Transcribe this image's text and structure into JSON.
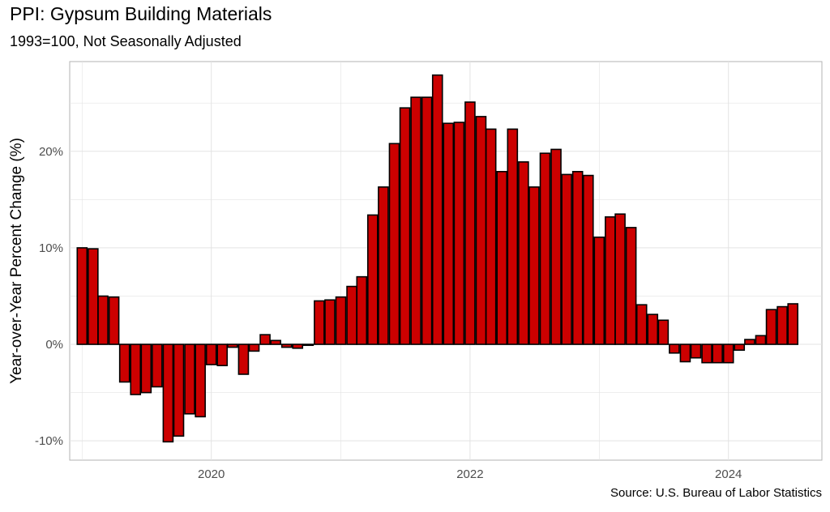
{
  "title": "PPI: Gypsum Building Materials",
  "subtitle": "1993=100, Not Seasonally Adjusted",
  "source": "Source: U.S. Bureau of Labor Statistics",
  "chart_data": {
    "type": "bar",
    "title": "PPI: Gypsum Building Materials",
    "subtitle": "1993=100, Not Seasonally Adjusted",
    "xlabel": "",
    "ylabel": "Year-over-Year Percent Change (%)",
    "x_ticks": [
      "2020",
      "2022",
      "2024"
    ],
    "y_ticks": [
      {
        "value": -10,
        "label": "-10%"
      },
      {
        "value": 0,
        "label": "0%"
      },
      {
        "value": 10,
        "label": "10%"
      },
      {
        "value": 20,
        "label": "20%"
      }
    ],
    "ylim": [
      -12,
      29.3
    ],
    "xlim": [
      "2018-11-27",
      "2024-09-21"
    ],
    "grid": true,
    "bar_fill": "#cc0000",
    "bar_outline": "#000000",
    "categories": [
      "2019-01",
      "2019-02",
      "2019-03",
      "2019-04",
      "2019-05",
      "2019-06",
      "2019-07",
      "2019-08",
      "2019-09",
      "2019-10",
      "2019-11",
      "2019-12",
      "2020-01",
      "2020-02",
      "2020-03",
      "2020-04",
      "2020-05",
      "2020-06",
      "2020-07",
      "2020-08",
      "2020-09",
      "2020-10",
      "2020-11",
      "2020-12",
      "2021-01",
      "2021-02",
      "2021-03",
      "2021-04",
      "2021-05",
      "2021-06",
      "2021-07",
      "2021-08",
      "2021-09",
      "2021-10",
      "2021-11",
      "2021-12",
      "2022-01",
      "2022-02",
      "2022-03",
      "2022-04",
      "2022-05",
      "2022-06",
      "2022-07",
      "2022-08",
      "2022-09",
      "2022-10",
      "2022-11",
      "2022-12",
      "2023-01",
      "2023-02",
      "2023-03",
      "2023-04",
      "2023-05",
      "2023-06",
      "2023-07",
      "2023-08",
      "2023-09",
      "2023-10",
      "2023-11",
      "2023-12",
      "2024-01",
      "2024-02",
      "2024-03",
      "2024-04",
      "2024-05",
      "2024-06",
      "2024-07"
    ],
    "values": [
      10.0,
      9.9,
      5.0,
      4.9,
      -3.9,
      -5.2,
      -5.0,
      -4.4,
      -10.1,
      -9.5,
      -7.2,
      -7.5,
      -2.1,
      -2.2,
      -0.3,
      -3.1,
      -0.7,
      1.0,
      0.4,
      -0.3,
      -0.4,
      -0.1,
      4.5,
      4.6,
      4.9,
      6.0,
      7.0,
      13.4,
      16.3,
      20.8,
      24.5,
      25.6,
      25.6,
      27.9,
      22.9,
      23.0,
      25.1,
      23.6,
      22.3,
      17.9,
      22.3,
      18.9,
      16.3,
      19.8,
      20.2,
      17.6,
      17.9,
      17.5,
      11.1,
      13.2,
      13.5,
      12.1,
      4.1,
      3.1,
      2.5,
      -0.9,
      -1.8,
      -1.4,
      -1.9,
      -1.9,
      -1.9,
      -0.6,
      0.5,
      0.9,
      3.6,
      3.9,
      4.2
    ]
  }
}
